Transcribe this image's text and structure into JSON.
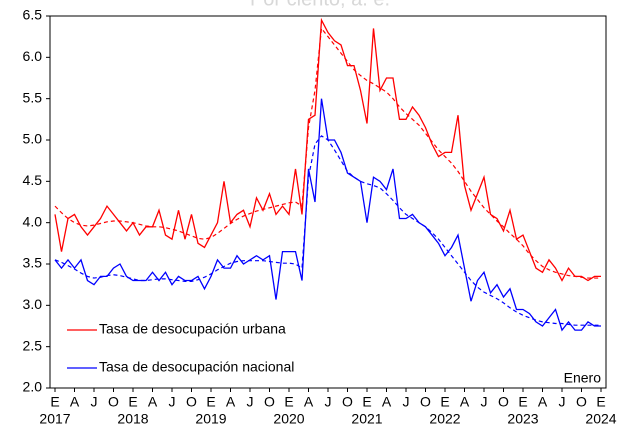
{
  "chart_data": {
    "type": "line",
    "subtitle": "Por ciento, a. e.",
    "annotation": "Enero",
    "categories": [
      "E",
      null,
      null,
      "A",
      null,
      null,
      "J",
      null,
      null,
      "O",
      null,
      null,
      "E",
      null,
      null,
      "A",
      null,
      null,
      "J",
      null,
      null,
      "O",
      null,
      null,
      "E",
      null,
      null,
      "A",
      null,
      null,
      "J",
      null,
      null,
      "O",
      null,
      null,
      "E",
      null,
      null,
      "A",
      null,
      null,
      "J",
      null,
      null,
      "O",
      null,
      null,
      "E",
      null,
      null,
      "A",
      null,
      null,
      "J",
      null,
      null,
      "O",
      null,
      null,
      "E",
      null,
      null,
      "A",
      null,
      null,
      "J",
      null,
      null,
      "O",
      null,
      null,
      "E",
      null,
      null,
      "A",
      null,
      null,
      "J",
      null,
      null,
      "O",
      null,
      null,
      "E"
    ],
    "year_labels": [
      "2017",
      "2018",
      "2019",
      "2020",
      "2021",
      "2022",
      "2023",
      "2024"
    ],
    "ylim": [
      2.0,
      6.5
    ],
    "yticks": [
      {
        "value": 2.0,
        "label": "2.0"
      },
      2.5,
      {
        "value": 3.0,
        "label": "3.0"
      },
      3.5,
      {
        "value": 4.0,
        "label": "4.0"
      },
      4.5,
      {
        "value": 5.0,
        "label": "5.0"
      },
      5.5,
      {
        "value": 6.0,
        "label": "6.0"
      },
      6.5
    ],
    "grid": false,
    "legend": "lower left",
    "series": [
      {
        "name": "Tasa de desocupación urbana",
        "color": "#ff0000",
        "dash": false,
        "values": [
          4.1,
          3.65,
          4.05,
          4.1,
          3.95,
          3.85,
          3.95,
          4.05,
          4.2,
          4.1,
          4.0,
          3.9,
          4.0,
          3.85,
          3.95,
          3.95,
          4.15,
          3.85,
          3.8,
          4.15,
          3.8,
          4.1,
          3.75,
          3.7,
          3.85,
          4.0,
          4.5,
          4.0,
          4.1,
          4.15,
          3.95,
          4.3,
          4.15,
          4.35,
          4.1,
          4.2,
          4.1,
          4.65,
          4.1,
          5.25,
          5.3,
          6.45,
          6.3,
          6.2,
          6.15,
          5.9,
          5.9,
          5.6,
          5.2,
          6.35,
          5.6,
          5.75,
          5.75,
          5.25,
          5.25,
          5.4,
          5.3,
          5.15,
          4.95,
          4.8,
          4.85,
          4.85,
          5.3,
          4.45,
          4.15,
          4.35,
          4.55,
          4.1,
          4.05,
          3.9,
          4.15,
          3.8,
          3.85,
          3.65,
          3.45,
          3.4,
          3.55,
          3.45,
          3.3,
          3.45,
          3.35,
          3.35,
          3.3,
          3.35,
          3.35
        ]
      },
      {
        "color": "#ff0000",
        "dash": true,
        "values": [
          4.2,
          4.12,
          4.05,
          4.0,
          3.97,
          3.96,
          3.97,
          3.99,
          4.01,
          4.02,
          4.02,
          4.01,
          4.0,
          3.98,
          3.96,
          3.95,
          3.95,
          3.94,
          3.92,
          3.9,
          3.87,
          3.84,
          3.81,
          3.8,
          3.82,
          3.87,
          3.93,
          3.99,
          4.04,
          4.08,
          4.11,
          4.14,
          4.16,
          4.18,
          4.2,
          4.22,
          4.24,
          4.25,
          4.2,
          5.15,
          5.6,
          6.35,
          6.25,
          6.15,
          6.05,
          5.95,
          5.85,
          5.78,
          5.72,
          5.68,
          5.63,
          5.58,
          5.5,
          5.4,
          5.32,
          5.25,
          5.18,
          5.08,
          4.98,
          4.88,
          4.8,
          4.72,
          4.62,
          4.5,
          4.38,
          4.28,
          4.18,
          4.1,
          4.02,
          3.95,
          3.87,
          3.8,
          3.72,
          3.62,
          3.54,
          3.47,
          3.43,
          3.4,
          3.38,
          3.36,
          3.35,
          3.34,
          3.33,
          3.33,
          3.33
        ]
      },
      {
        "name": "Tasa de desocupación nacional",
        "color": "#0000ff",
        "dash": false,
        "values": [
          3.55,
          3.45,
          3.55,
          3.45,
          3.55,
          3.3,
          3.25,
          3.35,
          3.35,
          3.45,
          3.5,
          3.35,
          3.3,
          3.3,
          3.3,
          3.4,
          3.3,
          3.4,
          3.25,
          3.35,
          3.3,
          3.3,
          3.35,
          3.2,
          3.35,
          3.55,
          3.45,
          3.45,
          3.6,
          3.5,
          3.55,
          3.6,
          3.55,
          3.6,
          3.07,
          3.65,
          3.65,
          3.65,
          3.3,
          4.65,
          4.25,
          5.5,
          5.0,
          5.0,
          4.85,
          4.6,
          4.55,
          4.5,
          4.0,
          4.55,
          4.5,
          4.4,
          4.65,
          4.05,
          4.05,
          4.1,
          4.0,
          3.95,
          3.85,
          3.75,
          3.6,
          3.7,
          3.85,
          3.45,
          3.05,
          3.3,
          3.4,
          3.15,
          3.25,
          3.1,
          3.2,
          2.95,
          2.95,
          2.9,
          2.8,
          2.75,
          2.85,
          2.95,
          2.7,
          2.8,
          2.7,
          2.7,
          2.8,
          2.75,
          2.75
        ]
      },
      {
        "color": "#0000ff",
        "dash": true,
        "values": [
          3.55,
          3.52,
          3.48,
          3.44,
          3.39,
          3.35,
          3.33,
          3.34,
          3.36,
          3.37,
          3.36,
          3.34,
          3.32,
          3.3,
          3.3,
          3.31,
          3.32,
          3.32,
          3.31,
          3.3,
          3.29,
          3.29,
          3.31,
          3.34,
          3.38,
          3.43,
          3.47,
          3.51,
          3.53,
          3.54,
          3.54,
          3.54,
          3.54,
          3.53,
          3.52,
          3.51,
          3.51,
          3.5,
          3.45,
          4.55,
          4.95,
          5.05,
          5.0,
          4.88,
          4.75,
          4.62,
          4.55,
          4.5,
          4.47,
          4.45,
          4.42,
          4.35,
          4.27,
          4.18,
          4.1,
          4.05,
          4.0,
          3.95,
          3.88,
          3.8,
          3.7,
          3.6,
          3.5,
          3.4,
          3.3,
          3.22,
          3.16,
          3.12,
          3.08,
          3.03,
          2.97,
          2.92,
          2.88,
          2.85,
          2.82,
          2.8,
          2.79,
          2.78,
          2.78,
          2.77,
          2.76,
          2.76,
          2.76,
          2.76,
          2.76
        ]
      }
    ]
  }
}
